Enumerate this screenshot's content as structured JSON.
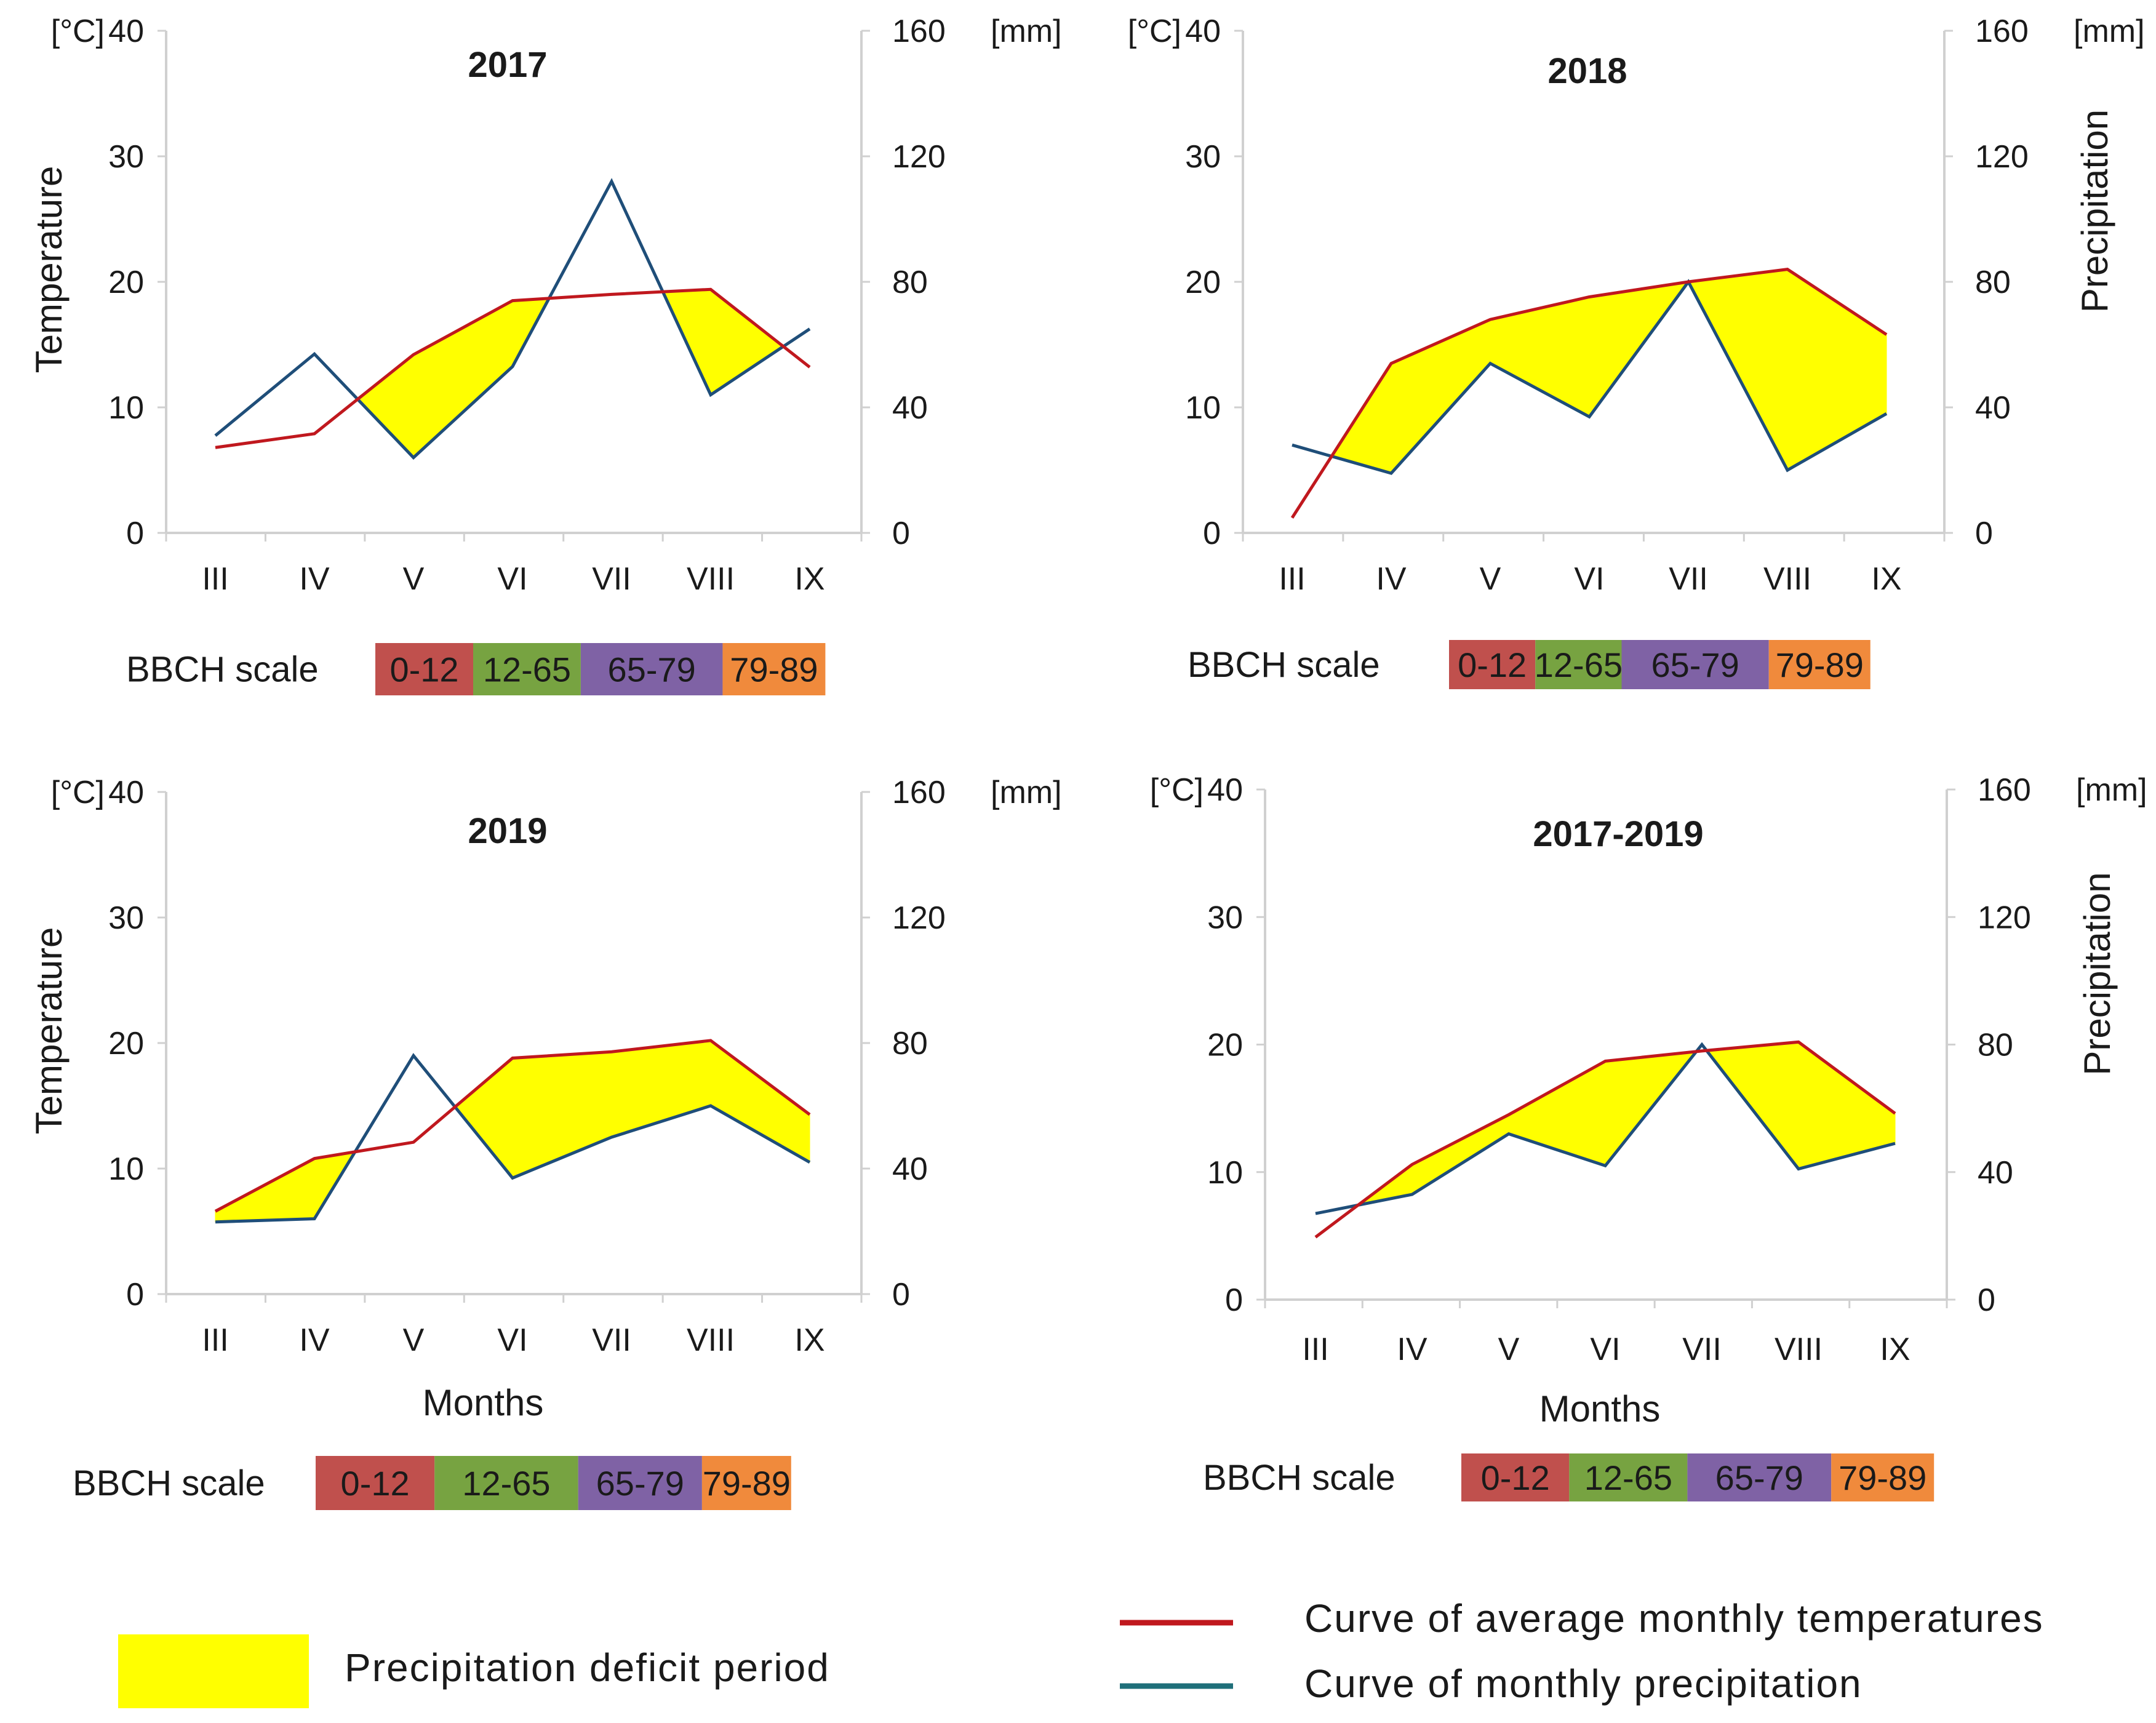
{
  "chart_data": [
    {
      "type": "line",
      "title": "2017",
      "left_unit": "[°C]",
      "right_unit": "[mm]",
      "ylabel_left": "Temperature",
      "ylabel_right": "",
      "xlabel": "",
      "categories": [
        "III",
        "IV",
        "V",
        "VI",
        "VII",
        "VIII",
        "IX"
      ],
      "ylim_left": [
        0,
        40
      ],
      "ylim_right": [
        0,
        160
      ],
      "yticks_left": [
        "0",
        "10",
        "20",
        "30",
        "40"
      ],
      "yticks_right": [
        "0",
        "40",
        "80",
        "120",
        "160"
      ],
      "series": [
        {
          "name": "Curve of average monthly temperatures",
          "axis": "left",
          "values": [
            6.8,
            7.9,
            14.2,
            18.5,
            19.0,
            19.4,
            13.2
          ]
        },
        {
          "name": "Curve of monthly precipitation",
          "axis": "right",
          "values": [
            31,
            57,
            24,
            53,
            112,
            44,
            65
          ]
        }
      ],
      "bbch": [
        {
          "label": "0-12",
          "from": 0,
          "to": 1
        },
        {
          "label": "12-65",
          "from": 1,
          "to": 2.1
        },
        {
          "label": "65-79",
          "from": 2.1,
          "to": 3.55
        },
        {
          "label": "79-89",
          "from": 3.55,
          "to": 4.6
        }
      ]
    },
    {
      "type": "line",
      "title": "2018",
      "left_unit": "[°C]",
      "right_unit": "[mm]",
      "ylabel_left": "",
      "ylabel_right": "Precipitation",
      "xlabel": "",
      "categories": [
        "III",
        "IV",
        "V",
        "VI",
        "VII",
        "VIII",
        "IX"
      ],
      "ylim_left": [
        0,
        40
      ],
      "ylim_right": [
        0,
        160
      ],
      "yticks_left": [
        "0",
        "10",
        "20",
        "30",
        "40"
      ],
      "yticks_right": [
        "0",
        "40",
        "80",
        "120",
        "160"
      ],
      "series": [
        {
          "name": "Curve of average monthly temperatures",
          "axis": "left",
          "values": [
            1.2,
            13.5,
            17.0,
            18.8,
            20.0,
            21.0,
            15.8
          ]
        },
        {
          "name": "Curve of monthly precipitation",
          "axis": "right",
          "values": [
            28,
            19,
            54,
            37,
            80,
            20,
            38
          ]
        }
      ],
      "bbch": [
        {
          "label": "0-12",
          "from": 0,
          "to": 0.85
        },
        {
          "label": "12-65",
          "from": 0.85,
          "to": 1.7
        },
        {
          "label": "65-79",
          "from": 1.7,
          "to": 3.15
        },
        {
          "label": "79-89",
          "from": 3.15,
          "to": 4.15
        }
      ]
    },
    {
      "type": "line",
      "title": "2019",
      "left_unit": "[°C]",
      "right_unit": "[mm]",
      "ylabel_left": "Temperature",
      "ylabel_right": "",
      "xlabel": "Months",
      "categories": [
        "III",
        "IV",
        "V",
        "VI",
        "VII",
        "VIII",
        "IX"
      ],
      "ylim_left": [
        0,
        40
      ],
      "ylim_right": [
        0,
        160
      ],
      "yticks_left": [
        "0",
        "10",
        "20",
        "30",
        "40"
      ],
      "yticks_right": [
        "0",
        "40",
        "80",
        "120",
        "160"
      ],
      "series": [
        {
          "name": "Curve of average monthly temperatures",
          "axis": "left",
          "values": [
            6.6,
            10.8,
            12.1,
            18.8,
            19.3,
            20.2,
            14.3
          ]
        },
        {
          "name": "Curve of monthly precipitation",
          "axis": "right",
          "values": [
            23,
            24,
            76,
            37,
            50,
            60,
            42
          ]
        }
      ],
      "bbch": [
        {
          "label": "0-12",
          "from": 0,
          "to": 1.2
        },
        {
          "label": "12-65",
          "from": 1.2,
          "to": 2.65
        },
        {
          "label": "65-79",
          "from": 2.65,
          "to": 3.9
        },
        {
          "label": "79-89",
          "from": 3.9,
          "to": 4.8
        }
      ]
    },
    {
      "type": "line",
      "title": "2017-2019",
      "left_unit": "[°C]",
      "right_unit": "[mm]",
      "ylabel_left": "",
      "ylabel_right": "Precipitation",
      "xlabel": "Months",
      "categories": [
        "III",
        "IV",
        "V",
        "VI",
        "VII",
        "VIII",
        "IX"
      ],
      "ylim_left": [
        0,
        40
      ],
      "ylim_right": [
        0,
        160
      ],
      "yticks_left": [
        "0",
        "10",
        "20",
        "30",
        "40"
      ],
      "yticks_right": [
        "0",
        "40",
        "80",
        "120",
        "160"
      ],
      "series": [
        {
          "name": "Curve of average monthly temperatures",
          "axis": "left",
          "values": [
            4.9,
            10.6,
            14.5,
            18.7,
            19.5,
            20.2,
            14.6
          ]
        },
        {
          "name": "Curve of monthly precipitation",
          "axis": "right",
          "values": [
            27,
            33,
            52,
            42,
            80,
            41,
            49
          ]
        }
      ],
      "bbch": [
        {
          "label": "0-12",
          "from": 0,
          "to": 1.05
        },
        {
          "label": "12-65",
          "from": 1.05,
          "to": 2.2
        },
        {
          "label": "65-79",
          "from": 2.2,
          "to": 3.6
        },
        {
          "label": "79-89",
          "from": 3.6,
          "to": 4.6
        }
      ]
    }
  ],
  "bbch_label": "BBCH scale",
  "bbch_colors": {
    "0-12": "#c0504d",
    "12-65": "#77a341",
    "65-79": "#7f62a5",
    "79-89": "#f08a3c"
  },
  "colors": {
    "temperature": "#c0181e",
    "precipitation": "#1f4e79",
    "deficit": "#ffff00",
    "axis": "#d0d0d0"
  },
  "legend": {
    "deficit_label": "Precipitation deficit period",
    "temperature_label": "Curve of average monthly temperatures",
    "precipitation_label": "Curve of monthly precipitation"
  }
}
